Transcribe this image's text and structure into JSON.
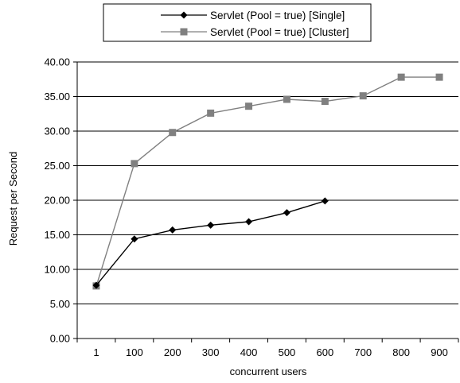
{
  "chart_data": {
    "type": "line",
    "categories": [
      "1",
      "100",
      "200",
      "300",
      "400",
      "500",
      "600",
      "700",
      "800",
      "900"
    ],
    "series": [
      {
        "name": "Servlet (Pool = true) [Single]",
        "values": [
          7.7,
          14.4,
          15.7,
          16.4,
          16.9,
          18.2,
          19.9,
          null,
          null,
          null
        ],
        "color": "#000000",
        "marker": "diamond"
      },
      {
        "name": "Servlet (Pool = true) [Cluster]",
        "values": [
          7.6,
          25.3,
          29.8,
          32.6,
          33.6,
          34.6,
          34.3,
          35.1,
          37.8,
          37.8
        ],
        "color": "#808080",
        "marker": "square"
      }
    ],
    "title": "",
    "xlabel": "concurrent users",
    "ylabel": "Request per Second",
    "ylim": [
      0,
      40
    ],
    "yticks": [
      "0.00",
      "5.00",
      "10.00",
      "15.00",
      "20.00",
      "25.00",
      "30.00",
      "35.00",
      "40.00"
    ],
    "grid": true,
    "legend_position": "top"
  }
}
